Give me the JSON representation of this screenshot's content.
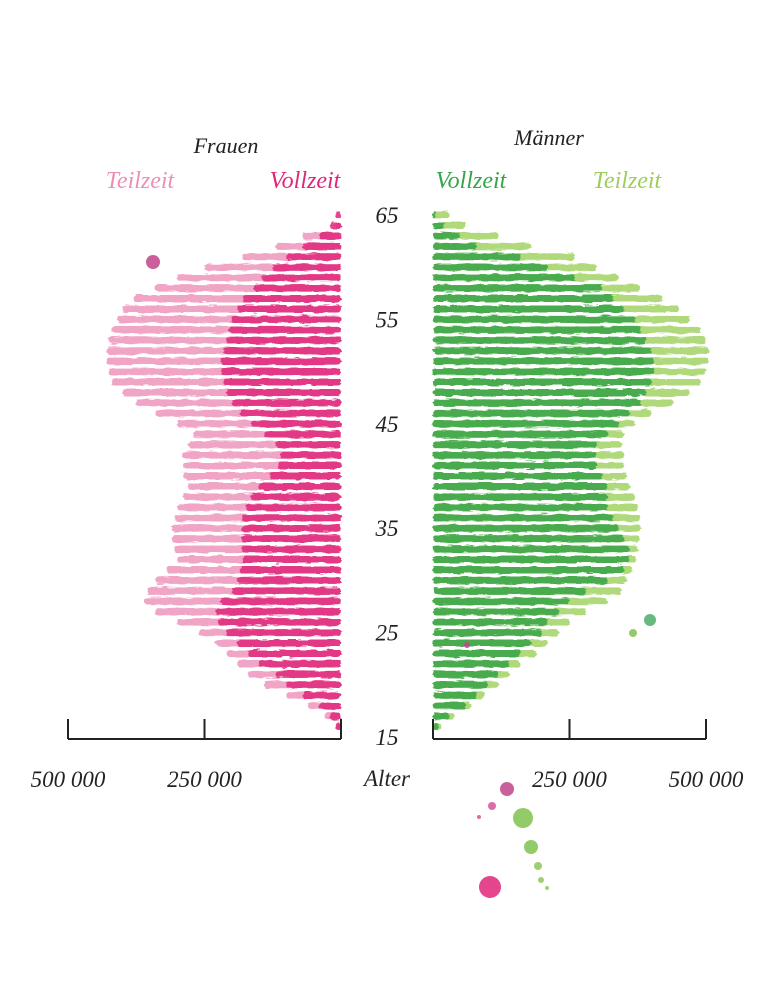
{
  "chart_data": {
    "type": "bar",
    "layout": "population-pyramid",
    "xlabel": "Alter",
    "colors": {
      "women_full": "#e0267a",
      "women_part": "#ec8fb8",
      "men_full": "#36a54a",
      "men_part": "#9ccf5a",
      "text": "#222222"
    },
    "panels": [
      {
        "title": "Frauen",
        "side": "left",
        "series": [
          {
            "name": "Vollzeit",
            "color_key": "women_full"
          },
          {
            "name": "Teilzeit",
            "color_key": "women_part"
          }
        ],
        "xlim": [
          0,
          500000
        ],
        "ticks": [
          0,
          250000,
          500000
        ],
        "tick_labels": [
          "",
          "250 000",
          "500 000"
        ]
      },
      {
        "title": "Männer",
        "side": "right",
        "series": [
          {
            "name": "Vollzeit",
            "color_key": "men_full"
          },
          {
            "name": "Teilzeit",
            "color_key": "men_part"
          }
        ],
        "xlim": [
          0,
          500000
        ],
        "ticks": [
          0,
          250000,
          500000
        ],
        "tick_labels": [
          "",
          "250 000",
          "500 000"
        ]
      }
    ],
    "ylim": [
      15,
      65
    ],
    "y_ticks": [
      "15",
      "25",
      "35",
      "45",
      "55",
      "65"
    ],
    "ages": [
      65,
      64,
      63,
      62,
      61,
      60,
      59,
      58,
      57,
      56,
      55,
      54,
      53,
      52,
      51,
      50,
      49,
      48,
      47,
      46,
      45,
      44,
      43,
      42,
      41,
      40,
      39,
      38,
      37,
      36,
      35,
      34,
      33,
      32,
      31,
      30,
      29,
      28,
      27,
      26,
      25,
      24,
      23,
      22,
      21,
      20,
      19,
      18,
      17,
      16
    ],
    "women_full": [
      10000,
      20000,
      40000,
      70000,
      100000,
      125000,
      145000,
      160000,
      180000,
      190000,
      200000,
      205000,
      210000,
      215000,
      220000,
      220000,
      215000,
      210000,
      200000,
      185000,
      165000,
      140000,
      120000,
      110000,
      115000,
      130000,
      150000,
      165000,
      175000,
      180000,
      182000,
      183000,
      182000,
      180000,
      185000,
      190000,
      200000,
      220000,
      230000,
      225000,
      210000,
      190000,
      170000,
      150000,
      120000,
      100000,
      70000,
      40000,
      20000,
      10000
    ],
    "women_part": [
      0,
      10000,
      70000,
      120000,
      180000,
      250000,
      300000,
      340000,
      380000,
      400000,
      410000,
      420000,
      425000,
      430000,
      430000,
      425000,
      420000,
      400000,
      375000,
      340000,
      300000,
      270000,
      280000,
      290000,
      290000,
      290000,
      280000,
      290000,
      300000,
      305000,
      310000,
      310000,
      305000,
      300000,
      320000,
      340000,
      355000,
      360000,
      340000,
      300000,
      260000,
      230000,
      210000,
      190000,
      170000,
      140000,
      100000,
      60000,
      30000,
      10000
    ],
    "men_full": [
      5000,
      20000,
      50000,
      80000,
      160000,
      210000,
      260000,
      310000,
      330000,
      350000,
      370000,
      380000,
      390000,
      400000,
      405000,
      405000,
      400000,
      390000,
      380000,
      360000,
      340000,
      320000,
      300000,
      300000,
      300000,
      310000,
      320000,
      320000,
      320000,
      330000,
      340000,
      350000,
      360000,
      360000,
      350000,
      320000,
      280000,
      250000,
      230000,
      210000,
      200000,
      180000,
      160000,
      140000,
      120000,
      100000,
      80000,
      60000,
      30000,
      10000
    ],
    "men_part": [
      30000,
      60000,
      120000,
      180000,
      260000,
      300000,
      340000,
      380000,
      420000,
      450000,
      470000,
      490000,
      500000,
      505000,
      505000,
      500000,
      490000,
      470000,
      440000,
      400000,
      370000,
      350000,
      345000,
      350000,
      350000,
      355000,
      360000,
      370000,
      375000,
      380000,
      380000,
      378000,
      375000,
      372000,
      365000,
      355000,
      345000,
      320000,
      280000,
      250000,
      230000,
      210000,
      190000,
      160000,
      140000,
      120000,
      95000,
      70000,
      40000,
      15000
    ]
  }
}
